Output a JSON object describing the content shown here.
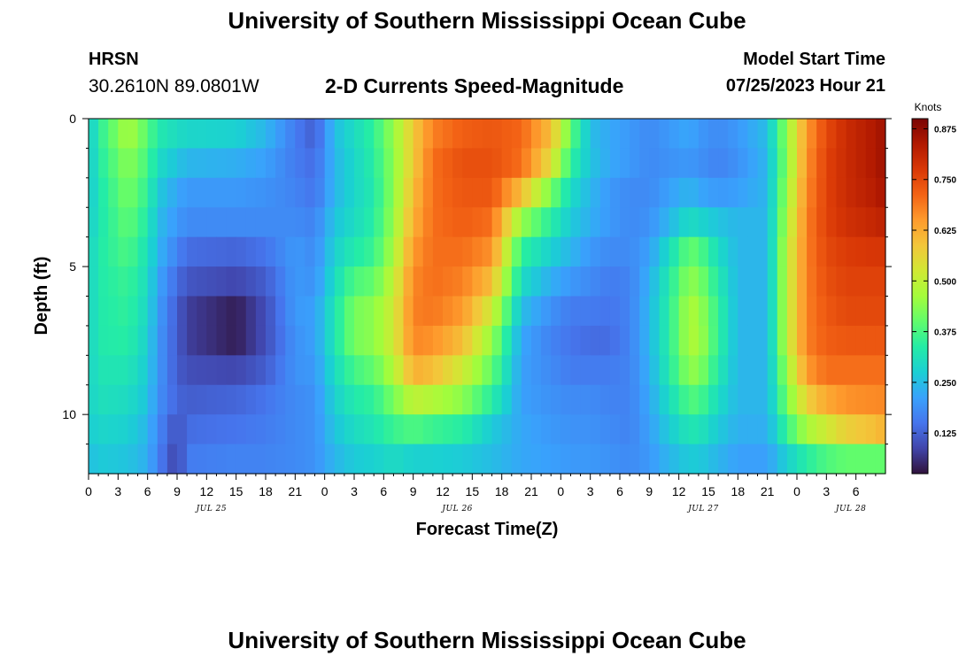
{
  "page": {
    "title_top": "University of Southern Mississippi Ocean Cube",
    "title_bottom": "University of Southern Mississippi Ocean Cube",
    "station_name": "HRSN",
    "station_coords": "30.2610N  89.0801W",
    "plot_title": "2-D Currents Speed-Magnitude",
    "model_start_label": "Model Start Time",
    "model_start_value": "07/25/2023 Hour 21"
  },
  "colors": {
    "colormap": [
      "#30123b",
      "#4145ab",
      "#4675ed",
      "#39a2fc",
      "#1bcfd4",
      "#24eca6",
      "#61fc6c",
      "#a4fc3b",
      "#d1e834",
      "#f3c63a",
      "#fe9b2d",
      "#f36315",
      "#d93806",
      "#b11901",
      "#7a0403"
    ]
  },
  "chart_data": {
    "type": "heatmap",
    "title": "2-D Currents Speed-Magnitude",
    "xlabel": "Forecast Time(Z)",
    "ylabel": "Depth (ft)",
    "x_range": [
      0,
      81
    ],
    "x_step_hours": 1,
    "x_tick_step": 3,
    "x_tick_labels": [
      "0",
      "3",
      "6",
      "9",
      "12",
      "15",
      "18",
      "21",
      "0",
      "3",
      "6",
      "9",
      "12",
      "15",
      "18",
      "21",
      "0",
      "3",
      "6",
      "9",
      "12",
      "15",
      "18",
      "21",
      "0",
      "3",
      "6"
    ],
    "date_labels": [
      {
        "label": "JUL 25",
        "hour": 12.5
      },
      {
        "label": "JUL 26",
        "hour": 37.5
      },
      {
        "label": "JUL 27",
        "hour": 62.5
      },
      {
        "label": "JUL 28",
        "hour": 77.5
      }
    ],
    "y_range": [
      0,
      12
    ],
    "y_layer_count": 12,
    "y_major_ticks": [
      0,
      5,
      10
    ],
    "y_minor_ticks": [
      1,
      2,
      3,
      4,
      6,
      7,
      8,
      9,
      11
    ],
    "colorbar": {
      "title": "Knots",
      "range": [
        0.025,
        0.9
      ],
      "ticks": [
        "0.125",
        "0.250",
        "0.375",
        "0.500",
        "0.625",
        "0.750",
        "0.875"
      ],
      "tick_values": [
        0.125,
        0.25,
        0.375,
        0.5,
        0.625,
        0.75,
        0.875
      ]
    },
    "value_keyframes_hours": [
      0,
      1,
      4,
      6,
      7,
      9,
      10,
      15,
      18,
      21,
      23,
      25,
      27,
      29,
      31,
      33,
      35,
      38,
      41,
      44,
      47,
      49,
      51,
      53,
      55,
      57,
      59,
      61,
      62,
      64,
      66,
      69,
      71,
      73,
      75,
      77,
      80,
      81
    ],
    "value_keyframes_layers": [
      [
        0.26,
        0.34,
        0.47,
        0.39,
        0.33,
        0.3,
        0.29,
        0.28,
        0.24,
        0.16,
        0.12,
        0.25,
        0.3,
        0.35,
        0.45,
        0.58,
        0.68,
        0.72,
        0.73,
        0.71,
        0.6,
        0.4,
        0.25,
        0.22,
        0.2,
        0.18,
        0.2,
        0.22,
        0.2,
        0.18,
        0.2,
        0.25,
        0.45,
        0.65,
        0.75,
        0.8,
        0.84,
        0.86
      ],
      [
        0.26,
        0.33,
        0.44,
        0.37,
        0.3,
        0.26,
        0.24,
        0.23,
        0.21,
        0.16,
        0.14,
        0.24,
        0.29,
        0.34,
        0.44,
        0.58,
        0.7,
        0.74,
        0.74,
        0.7,
        0.55,
        0.35,
        0.26,
        0.22,
        0.2,
        0.18,
        0.19,
        0.2,
        0.19,
        0.17,
        0.19,
        0.24,
        0.44,
        0.66,
        0.76,
        0.8,
        0.84,
        0.86
      ],
      [
        0.26,
        0.32,
        0.42,
        0.35,
        0.27,
        0.22,
        0.2,
        0.2,
        0.19,
        0.17,
        0.15,
        0.24,
        0.29,
        0.33,
        0.44,
        0.6,
        0.7,
        0.73,
        0.73,
        0.6,
        0.42,
        0.3,
        0.24,
        0.2,
        0.18,
        0.18,
        0.21,
        0.24,
        0.22,
        0.2,
        0.21,
        0.24,
        0.46,
        0.67,
        0.76,
        0.8,
        0.83,
        0.85
      ],
      [
        0.27,
        0.32,
        0.4,
        0.33,
        0.25,
        0.2,
        0.18,
        0.18,
        0.18,
        0.18,
        0.17,
        0.26,
        0.3,
        0.34,
        0.45,
        0.62,
        0.7,
        0.72,
        0.7,
        0.45,
        0.34,
        0.27,
        0.23,
        0.2,
        0.18,
        0.19,
        0.24,
        0.3,
        0.29,
        0.26,
        0.24,
        0.24,
        0.48,
        0.68,
        0.76,
        0.79,
        0.81,
        0.82
      ],
      [
        0.28,
        0.33,
        0.38,
        0.31,
        0.24,
        0.17,
        0.14,
        0.13,
        0.15,
        0.2,
        0.18,
        0.28,
        0.33,
        0.36,
        0.47,
        0.65,
        0.7,
        0.7,
        0.66,
        0.35,
        0.28,
        0.24,
        0.2,
        0.18,
        0.18,
        0.21,
        0.3,
        0.4,
        0.39,
        0.3,
        0.24,
        0.24,
        0.5,
        0.68,
        0.75,
        0.77,
        0.78,
        0.78
      ],
      [
        0.28,
        0.33,
        0.36,
        0.3,
        0.22,
        0.14,
        0.11,
        0.09,
        0.12,
        0.2,
        0.19,
        0.3,
        0.38,
        0.4,
        0.5,
        0.67,
        0.7,
        0.68,
        0.6,
        0.3,
        0.23,
        0.2,
        0.18,
        0.16,
        0.17,
        0.23,
        0.33,
        0.44,
        0.43,
        0.33,
        0.24,
        0.24,
        0.5,
        0.68,
        0.74,
        0.76,
        0.76,
        0.76
      ],
      [
        0.28,
        0.33,
        0.35,
        0.29,
        0.21,
        0.12,
        0.08,
        0.04,
        0.1,
        0.2,
        0.21,
        0.32,
        0.42,
        0.44,
        0.52,
        0.68,
        0.69,
        0.65,
        0.52,
        0.25,
        0.19,
        0.16,
        0.16,
        0.15,
        0.17,
        0.24,
        0.34,
        0.47,
        0.46,
        0.35,
        0.24,
        0.24,
        0.5,
        0.68,
        0.73,
        0.75,
        0.75,
        0.75
      ],
      [
        0.28,
        0.33,
        0.34,
        0.28,
        0.2,
        0.12,
        0.08,
        0.04,
        0.1,
        0.19,
        0.21,
        0.32,
        0.42,
        0.44,
        0.52,
        0.67,
        0.66,
        0.6,
        0.45,
        0.22,
        0.17,
        0.15,
        0.14,
        0.14,
        0.17,
        0.24,
        0.34,
        0.47,
        0.47,
        0.35,
        0.24,
        0.24,
        0.5,
        0.68,
        0.72,
        0.73,
        0.73,
        0.73
      ],
      [
        0.28,
        0.32,
        0.32,
        0.27,
        0.2,
        0.12,
        0.1,
        0.09,
        0.12,
        0.19,
        0.2,
        0.3,
        0.37,
        0.4,
        0.48,
        0.62,
        0.6,
        0.52,
        0.4,
        0.21,
        0.18,
        0.16,
        0.16,
        0.16,
        0.17,
        0.23,
        0.33,
        0.44,
        0.44,
        0.33,
        0.24,
        0.24,
        0.46,
        0.65,
        0.7,
        0.7,
        0.7,
        0.7
      ],
      [
        0.28,
        0.31,
        0.3,
        0.26,
        0.19,
        0.13,
        0.12,
        0.13,
        0.15,
        0.18,
        0.19,
        0.28,
        0.33,
        0.35,
        0.42,
        0.5,
        0.48,
        0.44,
        0.34,
        0.21,
        0.19,
        0.18,
        0.18,
        0.17,
        0.17,
        0.22,
        0.3,
        0.38,
        0.38,
        0.3,
        0.24,
        0.24,
        0.42,
        0.57,
        0.63,
        0.66,
        0.67,
        0.67
      ],
      [
        0.27,
        0.29,
        0.28,
        0.24,
        0.18,
        0.1,
        0.14,
        0.15,
        0.16,
        0.18,
        0.19,
        0.26,
        0.3,
        0.32,
        0.36,
        0.38,
        0.36,
        0.34,
        0.27,
        0.22,
        0.2,
        0.19,
        0.19,
        0.18,
        0.17,
        0.21,
        0.27,
        0.32,
        0.32,
        0.27,
        0.23,
        0.23,
        0.36,
        0.47,
        0.52,
        0.57,
        0.6,
        0.62
      ],
      [
        0.25,
        0.27,
        0.26,
        0.23,
        0.17,
        0.08,
        0.16,
        0.17,
        0.17,
        0.18,
        0.19,
        0.24,
        0.27,
        0.28,
        0.3,
        0.28,
        0.28,
        0.27,
        0.25,
        0.22,
        0.21,
        0.2,
        0.2,
        0.19,
        0.18,
        0.2,
        0.24,
        0.27,
        0.27,
        0.24,
        0.21,
        0.21,
        0.28,
        0.34,
        0.38,
        0.4,
        0.4,
        0.4
      ]
    ]
  }
}
